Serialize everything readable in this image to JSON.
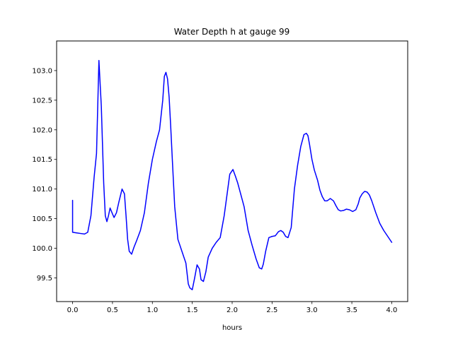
{
  "chart_data": {
    "type": "line",
    "title": "Water Depth h at gauge 99",
    "xlabel": "hours",
    "ylabel": "",
    "xlim": [
      -0.2,
      4.2
    ],
    "ylim": [
      99.1,
      103.5
    ],
    "xticks": [
      0.0,
      0.5,
      1.0,
      1.5,
      2.0,
      2.5,
      3.0,
      3.5,
      4.0
    ],
    "xtick_labels": [
      "0.0",
      "0.5",
      "1.0",
      "1.5",
      "2.0",
      "2.5",
      "3.0",
      "3.5",
      "4.0"
    ],
    "yticks": [
      99.5,
      100.0,
      100.5,
      101.0,
      101.5,
      102.0,
      102.5,
      103.0
    ],
    "ytick_labels": [
      "99.5",
      "100.0",
      "100.5",
      "101.0",
      "101.5",
      "102.0",
      "102.5",
      "103.0"
    ],
    "grid": false,
    "series": [
      {
        "color": "#0000ff",
        "x": [
          0.0,
          0.0,
          0.05,
          0.1,
          0.15,
          0.19,
          0.23,
          0.27,
          0.3,
          0.33,
          0.36,
          0.39,
          0.41,
          0.43,
          0.45,
          0.47,
          0.5,
          0.52,
          0.55,
          0.58,
          0.62,
          0.65,
          0.67,
          0.69,
          0.71,
          0.74,
          0.77,
          0.8,
          0.85,
          0.9,
          0.95,
          1.0,
          1.05,
          1.09,
          1.13,
          1.15,
          1.17,
          1.19,
          1.21,
          1.23,
          1.25,
          1.28,
          1.32,
          1.37,
          1.42,
          1.45,
          1.47,
          1.5,
          1.53,
          1.56,
          1.59,
          1.61,
          1.64,
          1.67,
          1.7,
          1.75,
          1.8,
          1.85,
          1.9,
          1.94,
          1.97,
          2.01,
          2.04,
          2.07,
          2.1,
          2.15,
          2.2,
          2.25,
          2.3,
          2.34,
          2.37,
          2.39,
          2.42,
          2.46,
          2.5,
          2.54,
          2.58,
          2.61,
          2.64,
          2.67,
          2.7,
          2.74,
          2.78,
          2.82,
          2.86,
          2.9,
          2.93,
          2.95,
          2.97,
          3.0,
          3.03,
          3.07,
          3.1,
          3.13,
          3.16,
          3.19,
          3.23,
          3.27,
          3.3,
          3.33,
          3.36,
          3.4,
          3.43,
          3.47,
          3.51,
          3.55,
          3.58,
          3.6,
          3.63,
          3.66,
          3.69,
          3.72,
          3.75,
          3.8,
          3.85,
          3.9,
          3.95,
          4.0
        ],
        "y": [
          100.81,
          100.27,
          100.26,
          100.25,
          100.24,
          100.27,
          100.55,
          101.2,
          101.6,
          103.17,
          102.4,
          101.1,
          100.55,
          100.45,
          100.55,
          100.68,
          100.58,
          100.52,
          100.6,
          100.78,
          101.0,
          100.92,
          100.55,
          100.15,
          99.95,
          99.9,
          100.02,
          100.12,
          100.3,
          100.6,
          101.1,
          101.5,
          101.8,
          102.0,
          102.5,
          102.9,
          102.97,
          102.86,
          102.55,
          102.05,
          101.5,
          100.7,
          100.15,
          99.95,
          99.75,
          99.4,
          99.33,
          99.3,
          99.5,
          99.72,
          99.65,
          99.47,
          99.44,
          99.6,
          99.85,
          100.0,
          100.1,
          100.18,
          100.55,
          100.95,
          101.25,
          101.33,
          101.22,
          101.1,
          100.95,
          100.7,
          100.3,
          100.05,
          99.82,
          99.67,
          99.65,
          99.73,
          99.95,
          100.18,
          100.2,
          100.21,
          100.28,
          100.3,
          100.27,
          100.2,
          100.18,
          100.35,
          101.0,
          101.4,
          101.72,
          101.92,
          101.94,
          101.9,
          101.75,
          101.5,
          101.32,
          101.15,
          100.98,
          100.87,
          100.8,
          100.8,
          100.84,
          100.8,
          100.72,
          100.65,
          100.63,
          100.64,
          100.66,
          100.65,
          100.62,
          100.65,
          100.75,
          100.85,
          100.92,
          100.96,
          100.95,
          100.9,
          100.8,
          100.6,
          100.42,
          100.3,
          100.2,
          100.1
        ]
      }
    ]
  }
}
